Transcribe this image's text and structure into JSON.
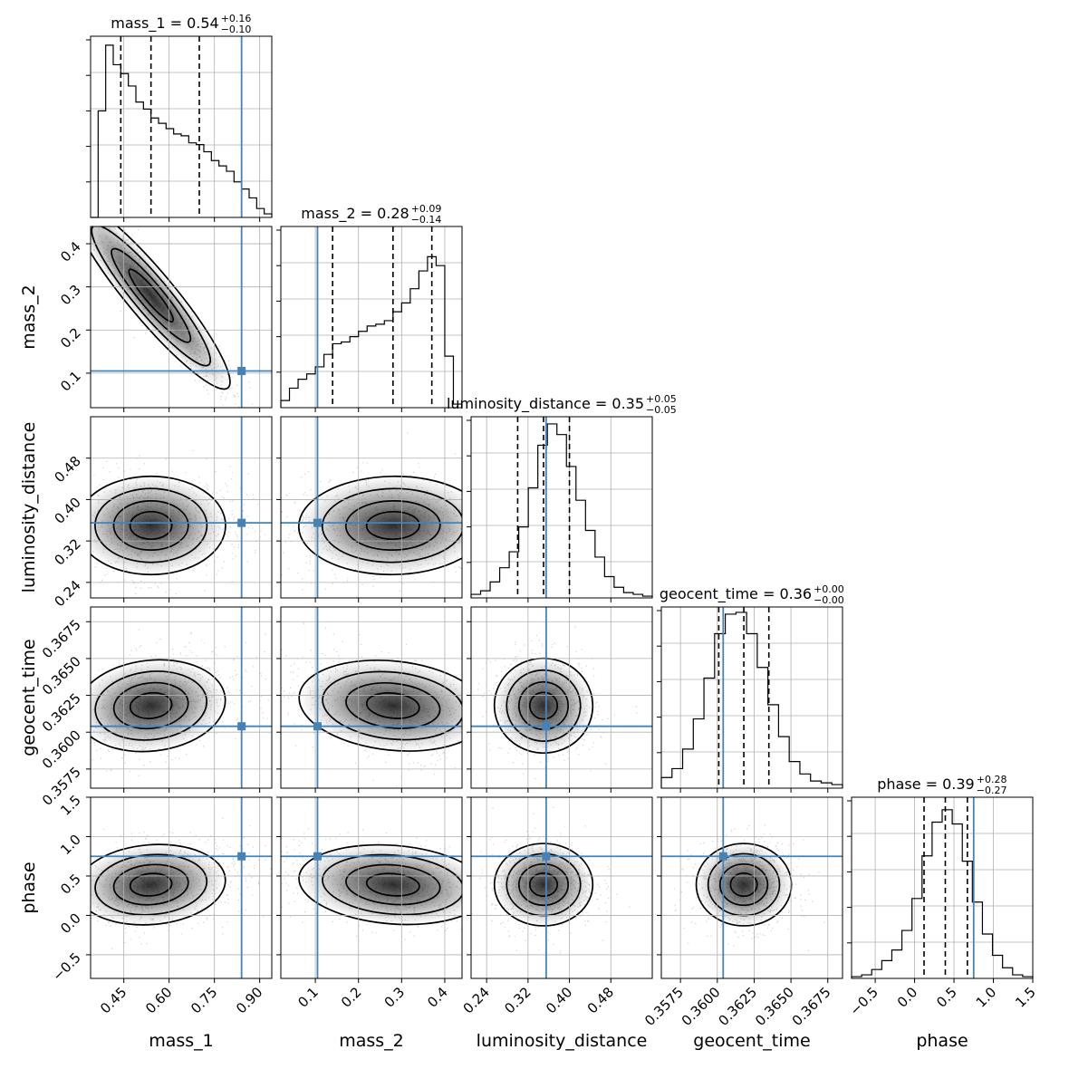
{
  "chart_data": {
    "type": "corner",
    "title": "",
    "grid": true,
    "colors": {
      "truth": "#4682b4",
      "hist": "#000000",
      "scatter": "#808080",
      "grid": "#b0b0b0"
    },
    "parameters": [
      {
        "name": "mass_1",
        "label": "mass_1",
        "title_main": "mass_1 = 0.54",
        "title_plus": "+0.16",
        "title_minus": "−0.10",
        "median": 0.54,
        "q16": 0.44,
        "q84": 0.7,
        "truth": 0.84,
        "range": [
          0.34,
          0.94
        ],
        "ticks": [
          0.45,
          0.6,
          0.75,
          0.9
        ],
        "tick_labels": [
          "0.45",
          "0.60",
          "0.75",
          "0.90"
        ]
      },
      {
        "name": "mass_2",
        "label": "mass_2",
        "title_main": "mass_2 = 0.28",
        "title_plus": "+0.09",
        "title_minus": "−0.14",
        "median": 0.28,
        "q16": 0.14,
        "q84": 0.37,
        "truth": 0.105,
        "range": [
          0.02,
          0.44
        ],
        "ticks": [
          0.1,
          0.2,
          0.3,
          0.4
        ],
        "tick_labels": [
          "0.1",
          "0.2",
          "0.3",
          "0.4"
        ]
      },
      {
        "name": "luminosity_distance",
        "label": "luminosity_distance",
        "title_main": "luminosity_distance = 0.35",
        "title_plus": "+0.05",
        "title_minus": "−0.05",
        "median": 0.35,
        "q16": 0.3,
        "q84": 0.4,
        "truth": 0.355,
        "range": [
          0.21,
          0.56
        ],
        "ticks": [
          0.24,
          0.32,
          0.4,
          0.48
        ],
        "tick_labels": [
          "0.24",
          "0.32",
          "0.40",
          "0.48"
        ]
      },
      {
        "name": "geocent_time",
        "label": "geocent_time",
        "title_main": "geocent_time = 0.36",
        "title_plus": "+0.00",
        "title_minus": "−0.00",
        "median": 0.3618,
        "q16": 0.3601,
        "q84": 0.3635,
        "truth": 0.3604,
        "range": [
          0.3562,
          0.3685
        ],
        "ticks": [
          0.3575,
          0.36,
          0.3625,
          0.365,
          0.3675
        ],
        "tick_labels": [
          "0.3575",
          "0.3600",
          "0.3625",
          "0.3650",
          "0.3675"
        ]
      },
      {
        "name": "phase",
        "label": "phase",
        "title_main": "phase = 0.39",
        "title_plus": "+0.28",
        "title_minus": "−0.27",
        "median": 0.39,
        "q16": 0.12,
        "q84": 0.67,
        "truth": 0.75,
        "range": [
          -0.8,
          1.5
        ],
        "ticks": [
          -0.5,
          0.0,
          0.5,
          1.0,
          1.5
        ],
        "tick_labels": [
          "−0.5",
          "0.0",
          "0.5",
          "1.0",
          "1.5"
        ]
      }
    ],
    "histograms": {
      "mass_1": [
        0,
        0.6,
        0.97,
        0.86,
        0.81,
        0.74,
        0.65,
        0.61,
        0.56,
        0.53,
        0.5,
        0.47,
        0.46,
        0.42,
        0.41,
        0.37,
        0.32,
        0.29,
        0.26,
        0.2,
        0.16,
        0.11,
        0.05,
        0.02
      ],
      "mass_2": [
        0.04,
        0.11,
        0.16,
        0.19,
        0.23,
        0.3,
        0.36,
        0.37,
        0.4,
        0.43,
        0.46,
        0.47,
        0.49,
        0.54,
        0.59,
        0.67,
        0.77,
        0.85,
        0.8,
        0.29,
        0.02
      ],
      "luminosity_distance": [
        0.02,
        0.04,
        0.09,
        0.17,
        0.26,
        0.4,
        0.62,
        0.86,
        0.98,
        0.92,
        0.74,
        0.55,
        0.38,
        0.23,
        0.12,
        0.06,
        0.03,
        0.02,
        0.01
      ],
      "geocent_time": [
        0.06,
        0.11,
        0.22,
        0.39,
        0.62,
        0.87,
        0.98,
        0.99,
        0.87,
        0.68,
        0.47,
        0.29,
        0.15,
        0.08,
        0.04,
        0.03,
        0.02
      ],
      "phase": [
        0.01,
        0.02,
        0.05,
        0.1,
        0.16,
        0.27,
        0.45,
        0.69,
        0.88,
        0.95,
        0.87,
        0.66,
        0.43,
        0.25,
        0.13,
        0.06,
        0.02,
        0.01
      ]
    }
  }
}
